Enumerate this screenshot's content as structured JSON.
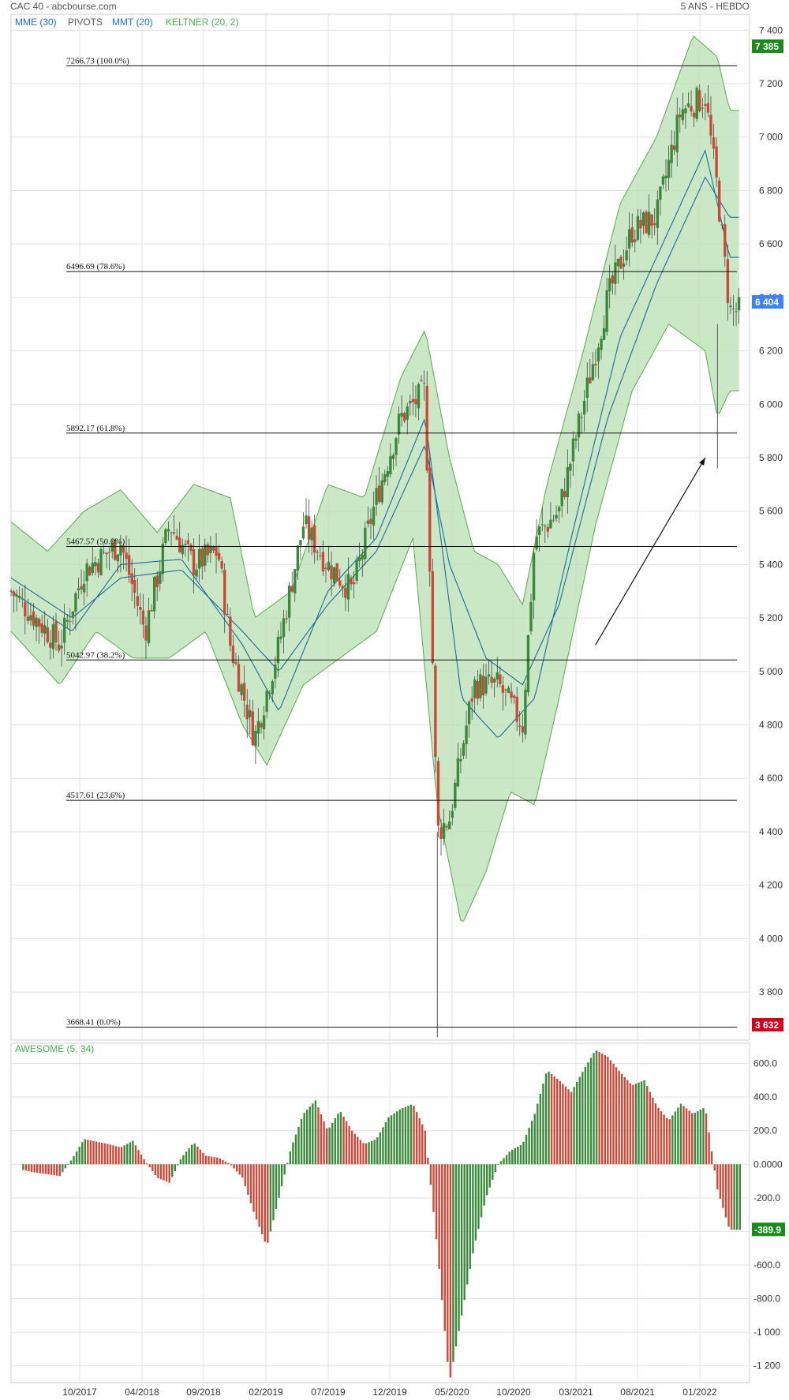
{
  "header": {
    "title": "CAC 40 - abcbourse.com",
    "period": "5 ANS - HEBDO"
  },
  "legend": [
    {
      "label": "MME (30)",
      "color": "#1f6fd1"
    },
    {
      "label": "PIVOTS",
      "color": "#555555"
    },
    {
      "label": "MMT (20)",
      "color": "#1f6fd1"
    },
    {
      "label": "KELTNER (20, 2)",
      "color": "#4caf50"
    }
  ],
  "colors": {
    "up": "#3b8a3b",
    "down": "#c94a3a",
    "keltner_fill": "#b9e0b3",
    "keltner_line": "#5aa84f",
    "ma_line": "#1c6a9e",
    "grid": "#e2e2e2",
    "badge_high": "#1a8a1a",
    "badge_last": "#3b82f6",
    "badge_low": "#d0021b"
  },
  "badges": {
    "high": "7 385",
    "last": "6 404",
    "low": "3 632",
    "ao_last": "-389.9"
  },
  "chart_data": [
    {
      "type": "line",
      "title": "CAC 40",
      "note": "weekly candlesticks with Keltner channel, moving averages and Fibonacci retracement levels",
      "x_tick_labels": [
        "10/2017",
        "04/2018",
        "09/2018",
        "02/2019",
        "07/2019",
        "12/2019",
        "05/2020",
        "10/2020",
        "03/2021",
        "08/2021",
        "01/2022"
      ],
      "y_ticks": [
        3800,
        4000,
        4200,
        4400,
        4600,
        4800,
        5000,
        5200,
        5400,
        5600,
        5800,
        6000,
        6200,
        6400,
        6600,
        6800,
        7000,
        7200,
        7400
      ],
      "y_tick_labels": [
        "3 800",
        "4 000",
        "4 200",
        "4 400",
        "4 600",
        "4 800",
        "5 000",
        "5 200",
        "5 400",
        "5 600",
        "5 800",
        "6 000",
        "6 200",
        "6 400",
        "6 600",
        "6 800",
        "7 000",
        "7 200",
        "7 400"
      ],
      "ylim": [
        3620,
        7460
      ],
      "x_range": [
        "2017-04",
        "2022-03"
      ],
      "fibonacci": [
        {
          "value": 7266.73,
          "label": "7266.73  (100.0%)"
        },
        {
          "value": 6496.69,
          "label": "6496.69  (78.6%)"
        },
        {
          "value": 5892.17,
          "label": "5892.17  (61.8%)"
        },
        {
          "value": 5467.57,
          "label": "5467.57  (50.0%)"
        },
        {
          "value": 5042.97,
          "label": "5042.97  (38.2%)"
        },
        {
          "value": 4517.61,
          "label": "4517.61  (23.6%)"
        },
        {
          "value": 3668.41,
          "label": "3668.41  (0.0%)"
        }
      ],
      "close_anchors": [
        [
          "2017-04",
          5300
        ],
        [
          "2017-06",
          5200
        ],
        [
          "2017-08",
          5100
        ],
        [
          "2017-10",
          5380
        ],
        [
          "2018-01",
          5480
        ],
        [
          "2018-03",
          5150
        ],
        [
          "2018-05",
          5550
        ],
        [
          "2018-07",
          5400
        ],
        [
          "2018-09",
          5450
        ],
        [
          "2018-10",
          5100
        ],
        [
          "2018-12",
          4750
        ],
        [
          "2019-02",
          5100
        ],
        [
          "2019-04",
          5550
        ],
        [
          "2019-06",
          5400
        ],
        [
          "2019-08",
          5300
        ],
        [
          "2019-10",
          5650
        ],
        [
          "2019-12",
          5950
        ],
        [
          "2020-02",
          6050
        ],
        [
          "2020-03",
          4400
        ],
        [
          "2020-04",
          4450
        ],
        [
          "2020-06",
          4950
        ],
        [
          "2020-08",
          4950
        ],
        [
          "2020-10",
          4800
        ],
        [
          "2020-11",
          5500
        ],
        [
          "2021-01",
          5600
        ],
        [
          "2021-03",
          6000
        ],
        [
          "2021-05",
          6400
        ],
        [
          "2021-07",
          6650
        ],
        [
          "2021-09",
          6700
        ],
        [
          "2021-11",
          7100
        ],
        [
          "2022-01",
          7150
        ],
        [
          "2022-02",
          6800
        ],
        [
          "2022-03",
          6350
        ]
      ],
      "keltner_upper": [
        [
          "2017-04",
          5560
        ],
        [
          "2017-07",
          5450
        ],
        [
          "2017-10",
          5600
        ],
        [
          "2018-01",
          5680
        ],
        [
          "2018-04",
          5520
        ],
        [
          "2018-07",
          5700
        ],
        [
          "2018-10",
          5650
        ],
        [
          "2018-12",
          5200
        ],
        [
          "2019-03",
          5300
        ],
        [
          "2019-06",
          5700
        ],
        [
          "2019-09",
          5650
        ],
        [
          "2019-12",
          6100
        ],
        [
          "2020-02",
          6280
        ],
        [
          "2020-04",
          5800
        ],
        [
          "2020-06",
          5450
        ],
        [
          "2020-08",
          5400
        ],
        [
          "2020-10",
          5250
        ],
        [
          "2020-12",
          5700
        ],
        [
          "2021-03",
          6200
        ],
        [
          "2021-06",
          6750
        ],
        [
          "2021-09",
          7000
        ],
        [
          "2021-12",
          7380
        ],
        [
          "2022-02",
          7300
        ],
        [
          "2022-03",
          7100
        ]
      ],
      "keltner_lower": [
        [
          "2017-04",
          5150
        ],
        [
          "2017-08",
          4950
        ],
        [
          "2017-11",
          5150
        ],
        [
          "2018-02",
          5050
        ],
        [
          "2018-05",
          5050
        ],
        [
          "2018-08",
          5150
        ],
        [
          "2018-11",
          4800
        ],
        [
          "2019-01",
          4650
        ],
        [
          "2019-04",
          4950
        ],
        [
          "2019-07",
          5050
        ],
        [
          "2019-10",
          5150
        ],
        [
          "2020-01",
          5500
        ],
        [
          "2020-03",
          4500
        ],
        [
          "2020-05",
          4050
        ],
        [
          "2020-07",
          4250
        ],
        [
          "2020-09",
          4550
        ],
        [
          "2020-11",
          4500
        ],
        [
          "2021-01",
          4900
        ],
        [
          "2021-04",
          5550
        ],
        [
          "2021-07",
          6050
        ],
        [
          "2021-10",
          6300
        ],
        [
          "2022-01",
          6200
        ],
        [
          "2022-02",
          5950
        ],
        [
          "2022-03",
          6050
        ]
      ],
      "mme_30": [
        [
          "2017-04",
          5350
        ],
        [
          "2017-09",
          5200
        ],
        [
          "2018-01",
          5350
        ],
        [
          "2018-06",
          5380
        ],
        [
          "2018-11",
          5150
        ],
        [
          "2019-02",
          5000
        ],
        [
          "2019-06",
          5250
        ],
        [
          "2019-10",
          5450
        ],
        [
          "2020-02",
          5850
        ],
        [
          "2020-04",
          5400
        ],
        [
          "2020-07",
          5050
        ],
        [
          "2020-10",
          4950
        ],
        [
          "2021-01",
          5250
        ],
        [
          "2021-05",
          5950
        ],
        [
          "2021-09",
          6450
        ],
        [
          "2022-01",
          6850
        ],
        [
          "2022-03",
          6700
        ]
      ],
      "mmt_20": [
        [
          "2017-04",
          5300
        ],
        [
          "2017-09",
          5150
        ],
        [
          "2018-01",
          5400
        ],
        [
          "2018-06",
          5420
        ],
        [
          "2018-11",
          5100
        ],
        [
          "2019-02",
          4850
        ],
        [
          "2019-06",
          5300
        ],
        [
          "2019-10",
          5500
        ],
        [
          "2020-02",
          5950
        ],
        [
          "2020-05",
          4900
        ],
        [
          "2020-08",
          4750
        ],
        [
          "2020-11",
          4900
        ],
        [
          "2021-02",
          5500
        ],
        [
          "2021-06",
          6250
        ],
        [
          "2021-10",
          6650
        ],
        [
          "2022-01",
          6950
        ],
        [
          "2022-03",
          6550
        ]
      ],
      "arrow": {
        "from": [
          "2021-04",
          5100
        ],
        "to": [
          "2022-01",
          5800
        ]
      }
    },
    {
      "type": "bar",
      "title": "AWESOME (5, 34)",
      "y_ticks": [
        600,
        400,
        200,
        0,
        -200,
        -400,
        -600,
        -800,
        -1000,
        -1200
      ],
      "y_tick_labels": [
        "600.0",
        "400.0",
        "200.0",
        "0.0000",
        "-200.0",
        "-400.0",
        "-600.0",
        "-800.0",
        "-1 000",
        "-1 200"
      ],
      "ylim": [
        -1300,
        720
      ],
      "series_anchors": [
        [
          "2017-04",
          -20
        ],
        [
          "2017-06",
          -50
        ],
        [
          "2017-08",
          -70
        ],
        [
          "2017-09",
          30
        ],
        [
          "2017-10",
          150
        ],
        [
          "2017-12",
          120
        ],
        [
          "2018-01",
          100
        ],
        [
          "2018-02",
          140
        ],
        [
          "2018-03",
          20
        ],
        [
          "2018-04",
          -80
        ],
        [
          "2018-05",
          -110
        ],
        [
          "2018-06",
          40
        ],
        [
          "2018-07",
          130
        ],
        [
          "2018-08",
          50
        ],
        [
          "2018-09",
          40
        ],
        [
          "2018-10",
          0
        ],
        [
          "2018-11",
          -80
        ],
        [
          "2018-12",
          -300
        ],
        [
          "2019-01",
          -490
        ],
        [
          "2019-02",
          -200
        ],
        [
          "2019-03",
          100
        ],
        [
          "2019-04",
          300
        ],
        [
          "2019-05",
          380
        ],
        [
          "2019-06",
          200
        ],
        [
          "2019-07",
          320
        ],
        [
          "2019-08",
          200
        ],
        [
          "2019-09",
          120
        ],
        [
          "2019-10",
          150
        ],
        [
          "2019-11",
          280
        ],
        [
          "2019-12",
          330
        ],
        [
          "2020-01",
          360
        ],
        [
          "2020-02",
          200
        ],
        [
          "2020-03",
          -500
        ],
        [
          "2020-04",
          -1300
        ],
        [
          "2020-05",
          -900
        ],
        [
          "2020-06",
          -500
        ],
        [
          "2020-07",
          -200
        ],
        [
          "2020-08",
          0
        ],
        [
          "2020-09",
          80
        ],
        [
          "2020-10",
          120
        ],
        [
          "2020-11",
          300
        ],
        [
          "2020-12",
          560
        ],
        [
          "2021-01",
          500
        ],
        [
          "2021-02",
          430
        ],
        [
          "2021-03",
          560
        ],
        [
          "2021-04",
          680
        ],
        [
          "2021-05",
          640
        ],
        [
          "2021-06",
          550
        ],
        [
          "2021-07",
          470
        ],
        [
          "2021-08",
          500
        ],
        [
          "2021-09",
          350
        ],
        [
          "2021-10",
          260
        ],
        [
          "2021-11",
          360
        ],
        [
          "2021-12",
          300
        ],
        [
          "2022-01",
          340
        ],
        [
          "2022-02",
          -150
        ],
        [
          "2022-03",
          -390
        ]
      ]
    }
  ]
}
